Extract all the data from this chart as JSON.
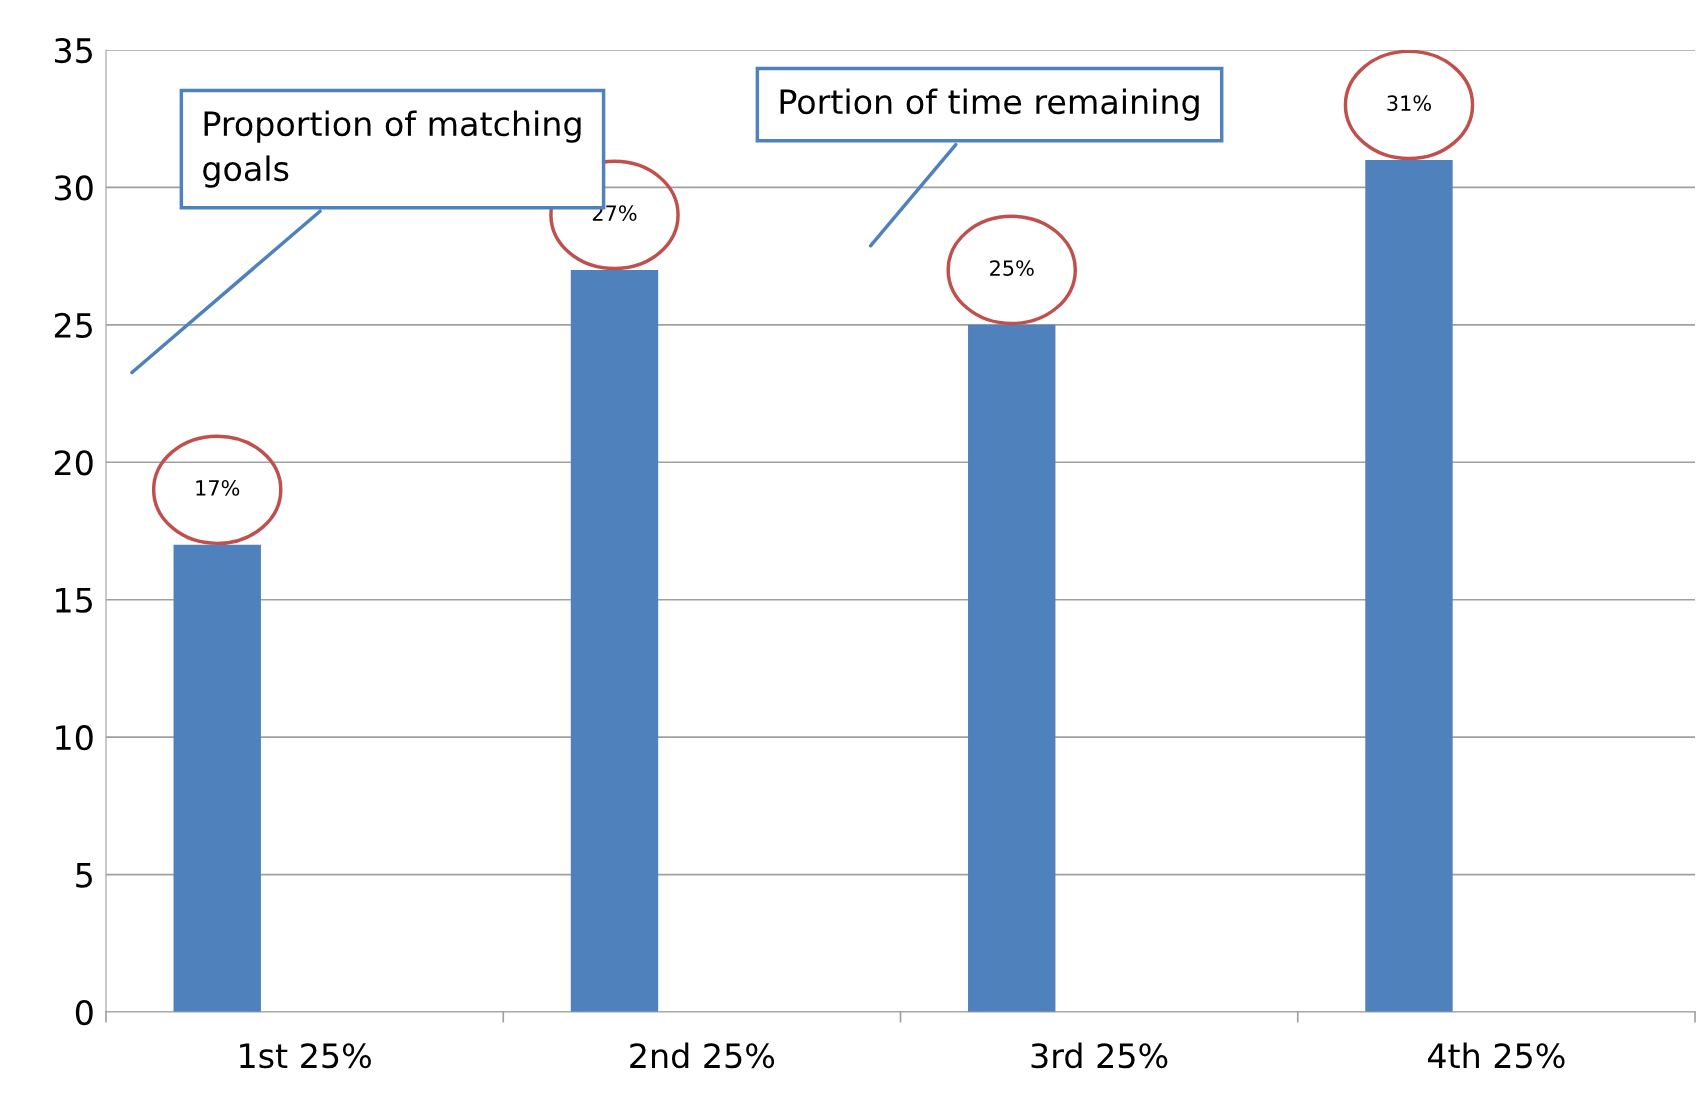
{
  "chart_data": {
    "type": "bar",
    "categories": [
      "1st 25%",
      "2nd 25%",
      "3rd 25%",
      "4th 25%"
    ],
    "values": [
      17,
      27,
      25,
      31
    ],
    "color": "#4f81bd",
    "value_labels": [
      "17%",
      "27%",
      "25%",
      "31%"
    ],
    "ylim": [
      0,
      35
    ],
    "yticks": [
      0,
      5,
      10,
      15,
      20,
      25,
      30,
      35
    ],
    "grid": "y",
    "annotations": [
      "Proportion of matching goals",
      "Portion of time remaining"
    ]
  }
}
